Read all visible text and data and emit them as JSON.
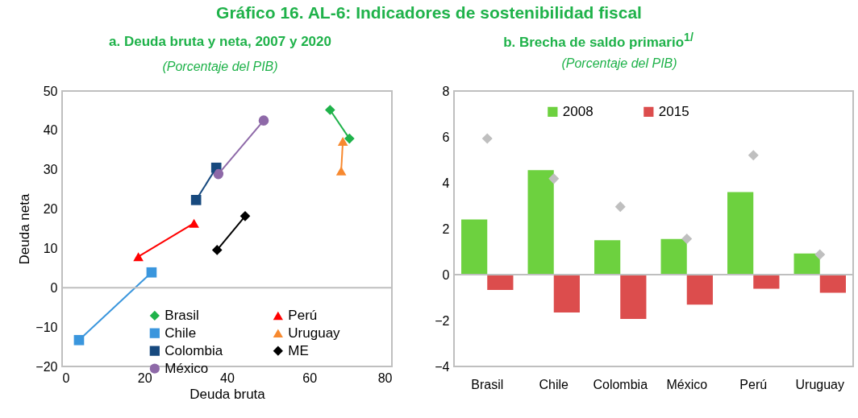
{
  "chart_data": [
    {
      "type": "scatter",
      "title": "a. Deuda bruta y neta, 2007 y 2020",
      "subtitle": "(Porcentaje del PIB)",
      "xlabel": "Deuda bruta",
      "ylabel": "Deuda neta",
      "annotations": [
        "Gráfico 16. AL-6: Indicadores de sostenibilidad fiscal"
      ],
      "xlim": [
        0,
        80
      ],
      "xticks": [
        0,
        20,
        40,
        60,
        80
      ],
      "ylim": [
        -20,
        50
      ],
      "yticks": [
        -20,
        -10,
        0,
        10,
        20,
        30,
        40,
        50
      ],
      "grid": false,
      "legend": "bottom",
      "ref_lines": [
        {
          "axis": "y",
          "value": 0,
          "color": "#bfbfbf"
        }
      ],
      "series": [
        {
          "name": "Brasil",
          "type": "line",
          "marker": "diamond",
          "color": "#1fb24a",
          "x": [
            65,
            69.7
          ],
          "values": [
            45.2,
            37.9
          ]
        },
        {
          "name": "Chile",
          "type": "line",
          "marker": "square",
          "color": "#3a96dd",
          "x": [
            4.1,
            21.7
          ],
          "values": [
            -13.3,
            3.9
          ]
        },
        {
          "name": "Colombia",
          "type": "line",
          "marker": "square",
          "color": "#17497e",
          "x": [
            32.5,
            37.4
          ],
          "values": [
            22.3,
            30.5
          ]
        },
        {
          "name": "México",
          "type": "line",
          "marker": "circle",
          "color": "#8e69a8",
          "x": [
            37.9,
            48.9
          ],
          "values": [
            28.9,
            42.5
          ]
        },
        {
          "name": "Perú",
          "type": "line",
          "marker": "triangle",
          "color": "#ff0000",
          "x": [
            32,
            18.5
          ],
          "values": [
            16.4,
            7.9
          ]
        },
        {
          "name": "Uruguay",
          "type": "line",
          "marker": "triangle",
          "color": "#f7892f",
          "x": [
            68.1,
            67.7
          ],
          "values": [
            37.2,
            29.7
          ]
        },
        {
          "name": "ME",
          "type": "line",
          "marker": "diamond",
          "color": "#000000",
          "x": [
            37.6,
            44.4
          ],
          "values": [
            9.6,
            18.2
          ]
        }
      ]
    },
    {
      "type": "bar",
      "title": "b. Brecha de saldo primario$^{1/}$",
      "subtitle": "(Porcentaje del PIB)",
      "categories": [
        "Brasil",
        "Chile",
        "Colombia",
        "México",
        "Perú",
        "Uruguay"
      ],
      "ylim": [
        -4,
        8
      ],
      "yticks": [
        -4,
        -2,
        0,
        2,
        4,
        6,
        8
      ],
      "grid": false,
      "legend": "top",
      "ref_lines": [
        {
          "axis": "y",
          "value": 0,
          "color": "#bfbfbf"
        }
      ],
      "series": [
        {
          "name": "2008",
          "color": "#6dd13f",
          "values": [
            2.4,
            4.55,
            1.5,
            1.55,
            3.6,
            0.92
          ]
        },
        {
          "name": "2015",
          "color": "#dc4d4d",
          "values": [
            -0.67,
            -1.65,
            -1.93,
            -1.31,
            -0.61,
            -0.79
          ]
        },
        {
          "type": "scatter",
          "marker": "diamond",
          "color": "#bfbfbf",
          "x": [
            "Brasil",
            "Chile",
            "Colombia",
            "México",
            "Perú",
            "Uruguay"
          ],
          "values": [
            5.93,
            4.18,
            2.96,
            1.56,
            5.2,
            0.88
          ]
        }
      ]
    }
  ]
}
